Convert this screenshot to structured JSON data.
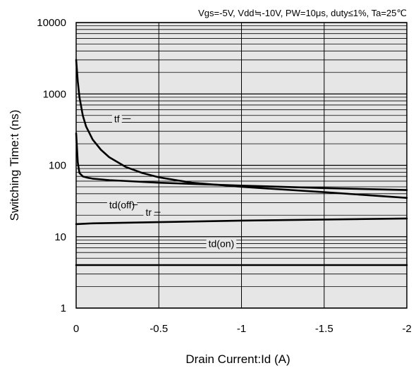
{
  "chart_data": {
    "type": "line",
    "title": "Vgs=-5V, Vdd≒-10V, PW=10μs, duty≤1%, Ta=25℃",
    "xlabel": "Drain Current:Id  (A)",
    "ylabel": "Switching Time:t  (ns)",
    "xlim": [
      0,
      -2
    ],
    "ylim": [
      1,
      10000
    ],
    "y_scale": "log",
    "grid": true,
    "background": "#e6e6e6",
    "line_color": "#000000",
    "x_ticks": [
      {
        "value": 0,
        "label": "0"
      },
      {
        "value": -0.5,
        "label": "-0.5"
      },
      {
        "value": -1,
        "label": "-1"
      },
      {
        "value": -1.5,
        "label": "-1.5"
      },
      {
        "value": -2,
        "label": "-2"
      }
    ],
    "y_ticks": [
      {
        "value": 1,
        "label": "1"
      },
      {
        "value": 10,
        "label": "10"
      },
      {
        "value": 100,
        "label": "100"
      },
      {
        "value": 1000,
        "label": "1000"
      },
      {
        "value": 10000,
        "label": "10000"
      }
    ],
    "series": [
      {
        "name": "tf",
        "x": [
          0,
          -0.01,
          -0.02,
          -0.04,
          -0.06,
          -0.1,
          -0.15,
          -0.2,
          -0.3,
          -0.4,
          -0.5,
          -0.7,
          -1.0,
          -1.5,
          -2.0
        ],
        "y": [
          3000,
          1500,
          900,
          500,
          350,
          230,
          165,
          130,
          95,
          78,
          68,
          57,
          50,
          42,
          35
        ]
      },
      {
        "name": "td(off)",
        "x": [
          0,
          -0.01,
          -0.02,
          -0.04,
          -0.07,
          -0.1,
          -0.2,
          -0.5,
          -1.0,
          -1.5,
          -2.0
        ],
        "y": [
          280,
          110,
          78,
          70,
          67,
          65,
          62,
          57,
          52,
          48,
          45
        ]
      },
      {
        "name": "tr",
        "x": [
          0,
          -0.1,
          -0.5,
          -1.0,
          -1.5,
          -2.0
        ],
        "y": [
          15,
          15.4,
          16,
          16.8,
          17.4,
          18
        ]
      },
      {
        "name": "td(on)",
        "x": [
          0,
          -2.0
        ],
        "y": [
          4,
          4
        ]
      }
    ],
    "series_labels": [
      {
        "text": "tf",
        "x": -0.23,
        "y": 450,
        "leader_to_x": -0.33
      },
      {
        "text": "td(off)",
        "x": -0.2,
        "y": 28,
        "leader_to_x": -0.34
      },
      {
        "text": "tr",
        "x": -0.42,
        "y": 22,
        "leader_to_x": -0.51
      },
      {
        "text": "td(on)",
        "x": -0.8,
        "y": 8,
        "leader_to_x": -0.98
      }
    ]
  }
}
